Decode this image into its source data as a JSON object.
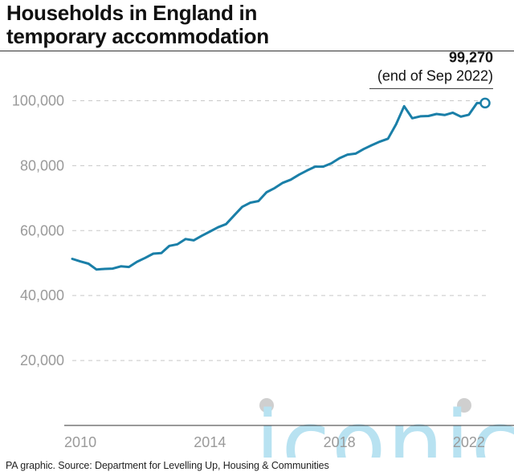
{
  "title_lines": [
    "Households in England in",
    "temporary accommodation"
  ],
  "source": "PA graphic. Source: Department for Levelling Up, Housing & Communities",
  "watermark": "iconic",
  "colors": {
    "line": "#1a7fa8",
    "grid": "#c8c8c8",
    "tick": "#9a9a9a",
    "watermark": "#b8e2f1"
  },
  "chart_data": {
    "type": "line",
    "xlabel": "",
    "ylabel": "",
    "xlim": [
      2009.75,
      2022.5
    ],
    "ylim": [
      0,
      110000
    ],
    "x_ticks": [
      2010,
      2014,
      2018,
      2022
    ],
    "x_tick_labels": [
      "2010",
      "2014",
      "2018",
      "2022"
    ],
    "y_ticks": [
      20000,
      40000,
      60000,
      80000,
      100000
    ],
    "y_tick_labels": [
      "20,000",
      "40,000",
      "60,000",
      "80,000",
      "100,000"
    ],
    "grid": "horizontal dashed",
    "legend": "none",
    "series": [
      {
        "x": [
          2009.75,
          2010.0,
          2010.25,
          2010.5,
          2010.75,
          2011.0,
          2011.25,
          2011.5,
          2011.75,
          2012.0,
          2012.25,
          2012.5,
          2012.75,
          2013.0,
          2013.25,
          2013.5,
          2013.75,
          2014.0,
          2014.25,
          2014.5,
          2014.75,
          2015.0,
          2015.25,
          2015.5,
          2015.75,
          2016.0,
          2016.25,
          2016.5,
          2016.75,
          2017.0,
          2017.25,
          2017.5,
          2017.75,
          2018.0,
          2018.25,
          2018.5,
          2018.75,
          2019.0,
          2019.25,
          2019.5,
          2019.75,
          2020.0,
          2020.25,
          2020.5,
          2020.75,
          2021.0,
          2021.25,
          2021.5,
          2021.75,
          2022.0,
          2022.25,
          2022.5
        ],
        "y": [
          51300,
          50500,
          49800,
          48000,
          48200,
          48300,
          49000,
          48800,
          50400,
          51600,
          52900,
          53100,
          55300,
          55800,
          57400,
          57000,
          58400,
          59700,
          61000,
          62000,
          64700,
          67300,
          68600,
          69100,
          71800,
          73100,
          74700,
          75700,
          77200,
          78500,
          79700,
          79700,
          80700,
          82300,
          83400,
          83700,
          85100,
          86300,
          87400,
          88300,
          92700,
          98300,
          94600,
          95200,
          95300,
          95900,
          95600,
          96300,
          95100,
          95700,
          99270,
          99270
        ]
      }
    ],
    "annotation": {
      "value": "99,270",
      "note": "(end of Sep 2022)",
      "x": 2022.5,
      "y": 99270
    }
  }
}
